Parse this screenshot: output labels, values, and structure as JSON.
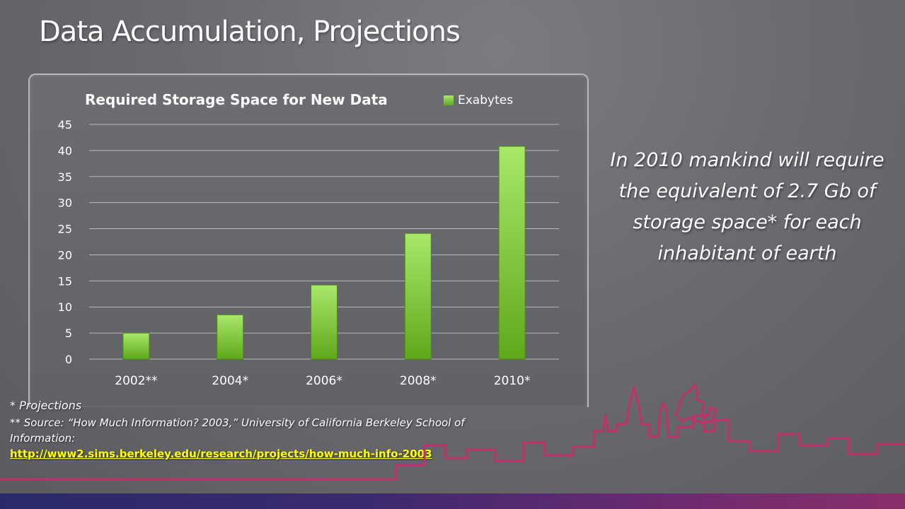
{
  "slide": {
    "title": "Data Accumulation, Projections",
    "callout": "In 2010 mankind will require the equivalent of 2.7 Gb of storage space* for each inhabitant of earth",
    "note_projections": "* Projections",
    "note_source": "** Source: “How Much Information? 2003,” University of California Berkeley School of Information:",
    "note_link": "http://www2.sims.berkeley.edu/research/projects/how-much-info-2003"
  },
  "colors": {
    "bar_top": "#a8e86a",
    "bar_bottom": "#5fa81a",
    "skyline": "#c0306a",
    "link": "#ffff00"
  },
  "chart_data": {
    "type": "bar",
    "title": "Required Storage Space for New Data",
    "categories": [
      "2002**",
      "2004*",
      "2006*",
      "2008*",
      "2010*"
    ],
    "series": [
      {
        "name": "Exabytes",
        "values": [
          5,
          8.5,
          14.2,
          24.1,
          40.8
        ]
      }
    ],
    "ylim": [
      0,
      45
    ],
    "yticks": [
      "0",
      "5",
      "10",
      "15",
      "20",
      "25",
      "30",
      "35",
      "40",
      "45"
    ],
    "ytick_values": [
      0,
      5,
      10,
      15,
      20,
      25,
      30,
      35,
      40,
      45
    ],
    "grid": true,
    "legend": "top-right"
  }
}
